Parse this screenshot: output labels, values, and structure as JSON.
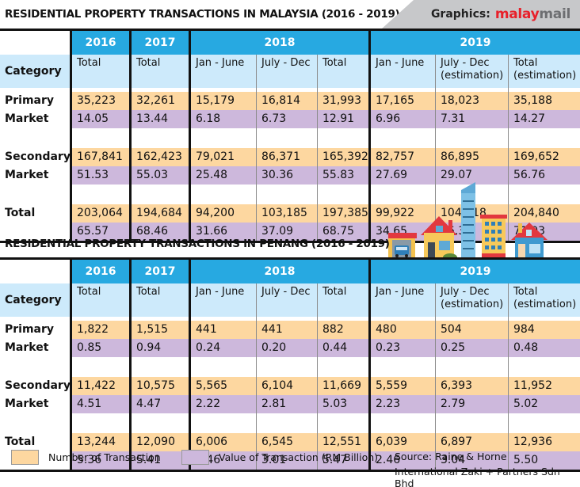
{
  "brand": {
    "label": "Graphics:",
    "name_red": "malay",
    "name_grey": "mail"
  },
  "colors": {
    "year_header": "#27a9e1",
    "sub_header": "#cdeafb",
    "number_row": "#fdd7a0",
    "value_row": "#cdb8dc",
    "brand_red": "#e8202a"
  },
  "legend": {
    "number": "Number of Transaction",
    "value": "Value of Transaction (RM Billion)"
  },
  "source": {
    "line1": "Source: Raine & Horne",
    "line2": "International Zaki + Partners Sdn Bhd"
  },
  "chart_data": [
    {
      "type": "table",
      "title": "RESIDENTIAL PROPERTY TRANSACTIONS IN MALAYSIA (2016 - 2019)",
      "year_headers": [
        "2016",
        "2017",
        "2018",
        "2019"
      ],
      "category_header": "Category",
      "columns": [
        "Total",
        "Total",
        "Jan - June",
        "July - Dec",
        "Total",
        "Jan - June",
        "July - Dec (estimation)",
        "Total (estimation)"
      ],
      "column_years": [
        "2016",
        "2017",
        "2018",
        "2018",
        "2018",
        "2019",
        "2019",
        "2019"
      ],
      "rows": [
        {
          "category": [
            "Primary",
            "Market"
          ],
          "transactions": [
            "35,223",
            "32,261",
            "15,179",
            "16,814",
            "31,993",
            "17,165",
            "18,023",
            "35,188"
          ],
          "value_rm_billion": [
            "14.05",
            "13.44",
            "6.18",
            "6.73",
            "12.91",
            "6.96",
            "7.31",
            "14.27"
          ]
        },
        {
          "category": [
            "Secondary",
            "Market"
          ],
          "transactions": [
            "167,841",
            "162,423",
            "79,021",
            "86,371",
            "165,392",
            "82,757",
            "86,895",
            "169,652"
          ],
          "value_rm_billion": [
            "51.53",
            "55.03",
            "25.48",
            "30.36",
            "55.83",
            "27.69",
            "29.07",
            "56.76"
          ]
        },
        {
          "category": [
            "Total",
            ""
          ],
          "transactions": [
            "203,064",
            "194,684",
            "94,200",
            "103,185",
            "197,385",
            "99,922",
            "104,918",
            "204,840"
          ],
          "value_rm_billion": [
            "65.57",
            "68.46",
            "31.66",
            "37.09",
            "68.75",
            "34.65",
            "36.38",
            "71.03"
          ]
        }
      ]
    },
    {
      "type": "table",
      "title": "RESIDENTIAL PROPERTY TRANSACTIONS IN PENANG (2016 - 2019)",
      "year_headers": [
        "2016",
        "2017",
        "2018",
        "2019"
      ],
      "category_header": "Category",
      "columns": [
        "Total",
        "Total",
        "Jan - June",
        "July - Dec",
        "Total",
        "Jan - June",
        "July - Dec (estimation)",
        "Total (estimation)"
      ],
      "column_years": [
        "2016",
        "2017",
        "2018",
        "2018",
        "2018",
        "2019",
        "2019",
        "2019"
      ],
      "rows": [
        {
          "category": [
            "Primary",
            "Market"
          ],
          "transactions": [
            "1,822",
            "1,515",
            "441",
            "441",
            "882",
            "480",
            "504",
            "984"
          ],
          "value_rm_billion": [
            "0.85",
            "0.94",
            "0.24",
            "0.20",
            "0.44",
            "0.23",
            "0.25",
            "0.48"
          ]
        },
        {
          "category": [
            "Secondary",
            "Market"
          ],
          "transactions": [
            "11,422",
            "10,575",
            "5,565",
            "6,104",
            "11,669",
            "5,559",
            "6,393",
            "11,952"
          ],
          "value_rm_billion": [
            "4.51",
            "4.47",
            "2.22",
            "2.81",
            "5.03",
            "2.23",
            "2.79",
            "5.02"
          ]
        },
        {
          "category": [
            "Total",
            ""
          ],
          "transactions": [
            "13,244",
            "12,090",
            "6,006",
            "6,545",
            "12,551",
            "6,039",
            "6,897",
            "12,936"
          ],
          "value_rm_billion": [
            "5.36",
            "5.41",
            "2.46",
            "3.01",
            "5.47",
            "2.46",
            "3.04",
            "5.50"
          ]
        }
      ]
    }
  ]
}
